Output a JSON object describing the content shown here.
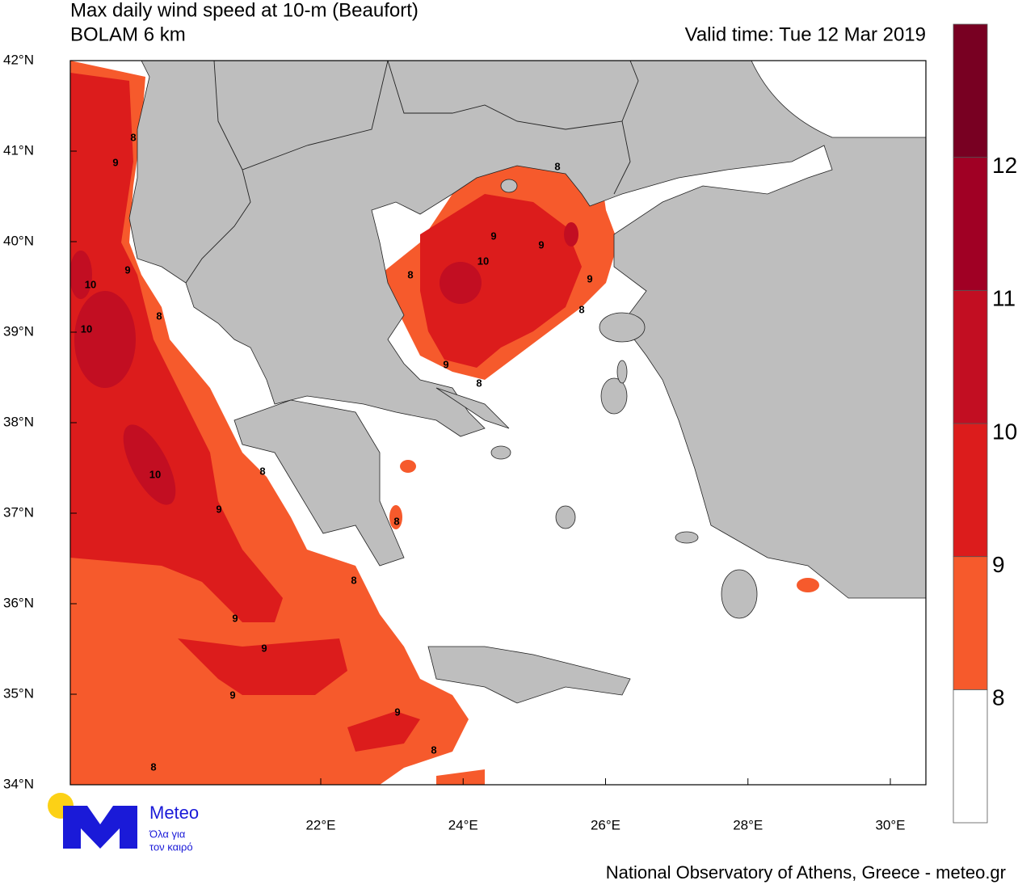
{
  "title": "Max daily wind speed at 10-m (Beaufort)",
  "subtitle": "BOLAM 6 km",
  "valid_time": "Valid time: Tue 12 Mar 2019",
  "lat_labels": [
    "42°N",
    "41°N",
    "40°N",
    "39°N",
    "38°N",
    "37°N",
    "36°N",
    "35°N",
    "34°N"
  ],
  "lon_labels": [
    "22°E",
    "24°E",
    "26°E",
    "28°E",
    "30°E"
  ],
  "colorbar": {
    "labels": [
      "8",
      "9",
      "10",
      "11",
      "12"
    ],
    "colors": [
      "#ffffff",
      "#f65a2c",
      "#dc1c1c",
      "#c20e22",
      "#a00024",
      "#780022"
    ]
  },
  "contour_labels": [
    "8",
    "9",
    "9",
    "10",
    "8",
    "10",
    "10",
    "8",
    "9",
    "8",
    "8",
    "9",
    "9",
    "9",
    "9",
    "8",
    "8",
    "8",
    "9",
    "9",
    "10",
    "8",
    "9",
    "8",
    "9",
    "8"
  ],
  "logo": {
    "name": "Meteo",
    "tagline_1": "Όλα για",
    "tagline_2": "τον καιρό"
  },
  "footer": "National Observatory of Athens, Greece - meteo.gr"
}
